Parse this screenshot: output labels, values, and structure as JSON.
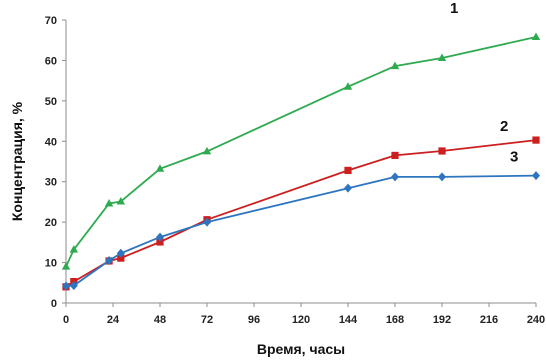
{
  "chart_data": {
    "type": "line",
    "title": "",
    "xlabel": "Время, часы",
    "ylabel": "Концентрация, %",
    "xlim": [
      0,
      240
    ],
    "ylim": [
      0,
      70
    ],
    "x_ticks": [
      "0",
      "24",
      "48",
      "72",
      "96",
      "120",
      "144",
      "168",
      "192",
      "216",
      "240"
    ],
    "y_ticks": [
      "0",
      "10",
      "20",
      "30",
      "40",
      "50",
      "60",
      "70"
    ],
    "grid": false,
    "legend": "none",
    "series": [
      {
        "label": "1",
        "color": "#2EAA4F",
        "marker": "triangle",
        "points": [
          [
            0,
            9
          ],
          [
            4,
            13.2
          ],
          [
            22,
            24.6
          ],
          [
            28,
            25.1
          ],
          [
            48,
            33.2
          ],
          [
            72,
            37.5
          ],
          [
            144,
            53.5
          ],
          [
            168,
            58.6
          ],
          [
            192,
            60.6
          ],
          [
            240,
            65.8
          ]
        ]
      },
      {
        "label": "2",
        "color": "#CC1F1F",
        "marker": "square",
        "points": [
          [
            0,
            4
          ],
          [
            4,
            5.3
          ],
          [
            22,
            10.4
          ],
          [
            28,
            11.1
          ],
          [
            48,
            15.1
          ],
          [
            72,
            20.6
          ],
          [
            144,
            32.8
          ],
          [
            168,
            36.5
          ],
          [
            192,
            37.6
          ],
          [
            240,
            40.3
          ]
        ]
      },
      {
        "label": "3",
        "color": "#2E75C0",
        "marker": "diamond",
        "points": [
          [
            0,
            4.2
          ],
          [
            4,
            4.3
          ],
          [
            22,
            10.5
          ],
          [
            28,
            12.3
          ],
          [
            48,
            16.3
          ],
          [
            72,
            20
          ],
          [
            144,
            28.4
          ],
          [
            168,
            31.2
          ],
          [
            192,
            31.2
          ],
          [
            240,
            31.5
          ]
        ]
      }
    ]
  }
}
